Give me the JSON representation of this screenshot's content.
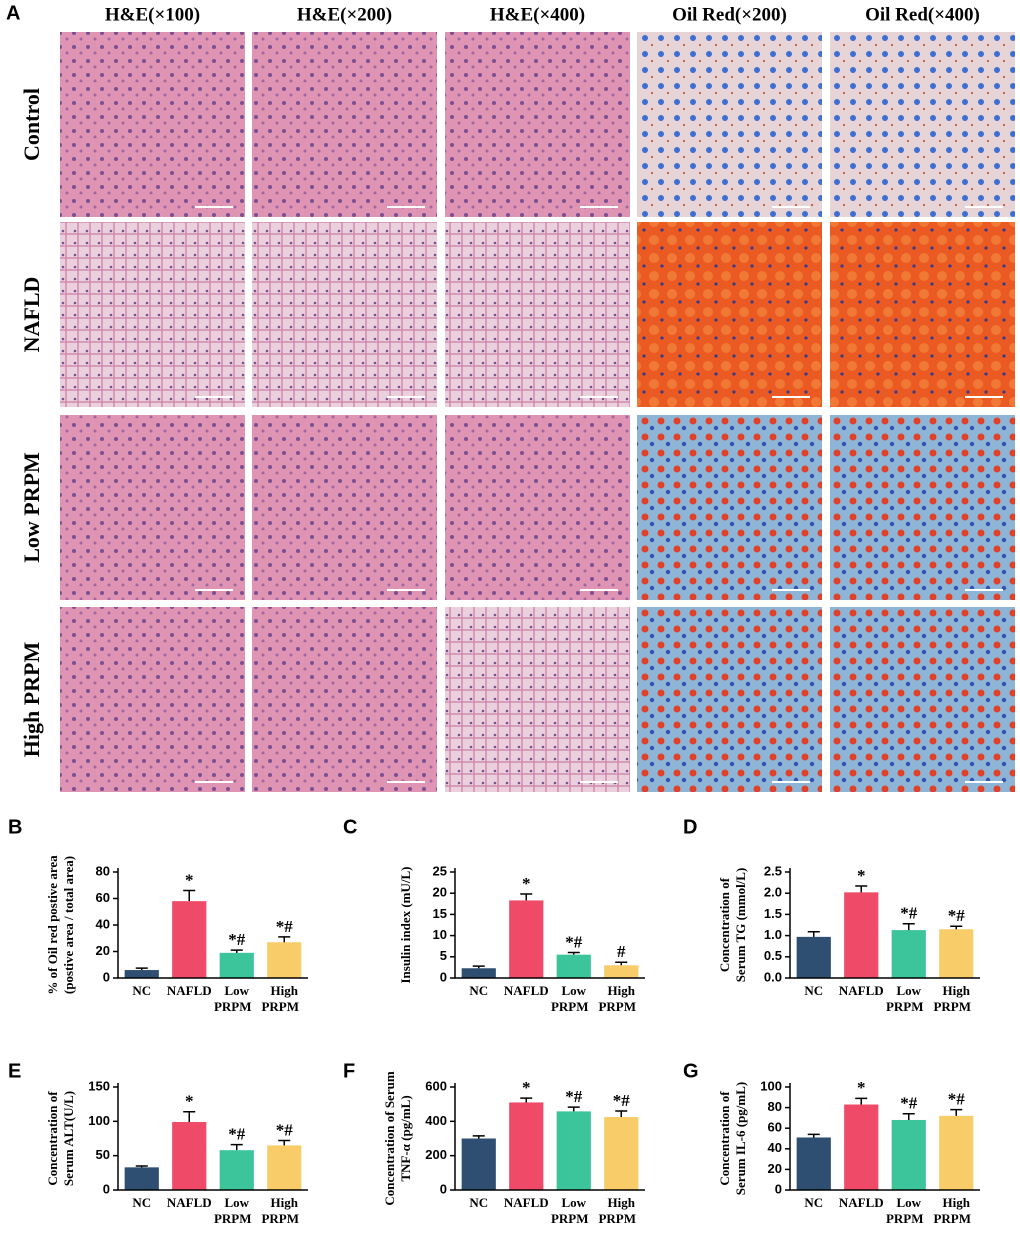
{
  "panel_a": {
    "label": "A",
    "columns": [
      "H&E(×100)",
      "H&E(×200)",
      "H&E(×400)",
      "Oil Red(×200)",
      "Oil Red(×400)"
    ],
    "rows": [
      "Control",
      "NAFLD",
      "Low PRPM",
      "High PRPM"
    ]
  },
  "chart_data": [
    {
      "type": "bar",
      "label": "B",
      "ylabel": [
        "% of Oil red postive area",
        "(postive area / total area)"
      ],
      "categories": [
        [
          "NC"
        ],
        [
          "NAFLD"
        ],
        [
          "Low",
          "PRPM"
        ],
        [
          "High",
          "PRPM"
        ]
      ],
      "values": [
        6,
        58,
        19,
        27
      ],
      "errors": [
        1.5,
        8,
        2,
        4
      ],
      "annotations": [
        null,
        "*",
        "*#",
        "*#"
      ],
      "colors": [
        "#2f4f72",
        "#ef4a68",
        "#3cc49a",
        "#f9cc6a"
      ],
      "ylim": [
        0,
        80
      ],
      "yticks": [
        0,
        20,
        40,
        60,
        80
      ]
    },
    {
      "type": "bar",
      "label": "C",
      "ylabel": [
        "Insulin index (mU/L)"
      ],
      "categories": [
        [
          "NC"
        ],
        [
          "NAFLD"
        ],
        [
          "Low",
          "PRPM"
        ],
        [
          "High",
          "PRPM"
        ]
      ],
      "values": [
        2.3,
        18.3,
        5.5,
        3.0
      ],
      "errors": [
        0.5,
        1.5,
        0.5,
        0.7
      ],
      "annotations": [
        null,
        "*",
        "*#",
        "#"
      ],
      "colors": [
        "#2f4f72",
        "#ef4a68",
        "#3cc49a",
        "#f9cc6a"
      ],
      "ylim": [
        0,
        25
      ],
      "yticks": [
        0,
        5,
        10,
        15,
        20,
        25
      ]
    },
    {
      "type": "bar",
      "label": "D",
      "ylabel": [
        "Concentration of",
        "Serum TG (mmol/L)"
      ],
      "categories": [
        [
          "NC"
        ],
        [
          "NAFLD"
        ],
        [
          "Low",
          "PRPM"
        ],
        [
          "High",
          "PRPM"
        ]
      ],
      "values": [
        0.97,
        2.02,
        1.13,
        1.15
      ],
      "errors": [
        0.12,
        0.15,
        0.15,
        0.07
      ],
      "annotations": [
        null,
        "*",
        "*#",
        "*#"
      ],
      "colors": [
        "#2f4f72",
        "#ef4a68",
        "#3cc49a",
        "#f9cc6a"
      ],
      "ylim": [
        0,
        2.5
      ],
      "yticks": [
        {
          "value": 0,
          "label": "0.0"
        },
        0.5,
        {
          "value": 1,
          "label": "1.0"
        },
        1.5,
        {
          "value": 2,
          "label": "2.0"
        },
        2.5
      ]
    },
    {
      "type": "bar",
      "label": "E",
      "ylabel": [
        "Concentration of",
        "Serum ALT(U/L)"
      ],
      "categories": [
        [
          "NC"
        ],
        [
          "NAFLD"
        ],
        [
          "Low",
          "PRPM"
        ],
        [
          "High",
          "PRPM"
        ]
      ],
      "values": [
        33,
        99,
        58,
        65
      ],
      "errors": [
        2,
        15,
        8,
        7
      ],
      "annotations": [
        null,
        "*",
        "*#",
        "*#"
      ],
      "colors": [
        "#2f4f72",
        "#ef4a68",
        "#3cc49a",
        "#f9cc6a"
      ],
      "ylim": [
        0,
        150
      ],
      "yticks": [
        0,
        50,
        100,
        150
      ]
    },
    {
      "type": "bar",
      "label": "F",
      "ylabel": [
        "Concentration of Serum",
        "TNF-α (pg/mL)"
      ],
      "categories": [
        [
          "NC"
        ],
        [
          "NAFLD"
        ],
        [
          "Low",
          "PRPM"
        ],
        [
          "High",
          "PRPM"
        ]
      ],
      "values": [
        300,
        510,
        458,
        425
      ],
      "errors": [
        15,
        25,
        25,
        35
      ],
      "annotations": [
        null,
        "*",
        "*#",
        "*#"
      ],
      "colors": [
        "#2f4f72",
        "#ef4a68",
        "#3cc49a",
        "#f9cc6a"
      ],
      "ylim": [
        0,
        600
      ],
      "yticks": [
        0,
        200,
        400,
        600
      ]
    },
    {
      "type": "bar",
      "label": "G",
      "ylabel": [
        "Concentration of",
        "Serum IL-6 (pg/mL)"
      ],
      "categories": [
        [
          "NC"
        ],
        [
          "NAFLD"
        ],
        [
          "Low",
          "PRPM"
        ],
        [
          "High",
          "PRPM"
        ]
      ],
      "values": [
        51,
        83,
        68,
        72
      ],
      "errors": [
        3,
        6,
        6,
        6
      ],
      "annotations": [
        null,
        "*",
        "*#",
        "*#"
      ],
      "colors": [
        "#2f4f72",
        "#ef4a68",
        "#3cc49a",
        "#f9cc6a"
      ],
      "ylim": [
        0,
        100
      ],
      "yticks": [
        0,
        20,
        40,
        60,
        80,
        100
      ]
    }
  ]
}
